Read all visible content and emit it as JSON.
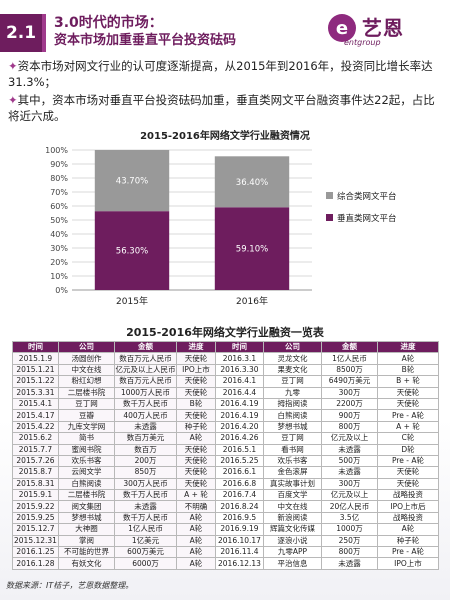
{
  "header": {
    "section": "2.1",
    "title_line1": "3.0时代的市场：",
    "title_line2": "资本市场加重垂直平台投资砝码",
    "logo_mark": "e",
    "logo_name": "艺恩",
    "logo_sub": "entgroup"
  },
  "bullets": [
    "资本市场对网文行业的认可度逐渐提高，从2015年到2016年，投资同比增长率达31.3%；",
    "其中，资本市场对垂直平台投资砝码加重，垂直类网文平台融资事件达22起，占比将近六成。"
  ],
  "bullet_marker": "✦",
  "chart_data": {
    "type": "bar",
    "stacked": true,
    "title": "2015-2016年网络文学行业融资情况",
    "categories": [
      "2015年",
      "2016年"
    ],
    "series": [
      {
        "name": "垂直类网文平台",
        "values": [
          56.3,
          59.1
        ],
        "labels": [
          "56.30%",
          "59.10%"
        ],
        "color": "#6e1d5e"
      },
      {
        "name": "综合类网文平台",
        "values": [
          43.7,
          36.4
        ],
        "labels": [
          "43.70%",
          "36.40%"
        ],
        "color": "#999999"
      }
    ],
    "ylim": [
      0,
      100
    ],
    "yticks": [
      "0%",
      "10%",
      "20%",
      "30%",
      "40%",
      "50%",
      "60%",
      "70%",
      "80%",
      "90%",
      "100%"
    ],
    "legend": "right",
    "grid": true
  },
  "table": {
    "title": "2015-2016年网络文学行业融资一览表",
    "headers": [
      "时间",
      "公司",
      "金额",
      "进度",
      "时间",
      "公司",
      "金额",
      "进度"
    ],
    "rows": [
      [
        "2015.1.9",
        "汤圆创作",
        "数百万元人民币",
        "天使轮",
        "2016.3.1",
        "灵龙文化",
        "1亿人民币",
        "A轮"
      ],
      [
        "2015.1.21",
        "中文在线",
        "亿元及以上人民币",
        "IPO上市",
        "2016.3.30",
        "果麦文化",
        "8500万",
        "B轮"
      ],
      [
        "2015.1.22",
        "粉红幻想",
        "数百万元人民币",
        "天使轮",
        "2016.4.1",
        "豆丁网",
        "6490万美元",
        "B + 轮"
      ],
      [
        "2015.3.31",
        "二层楼书院",
        "1000万人民币",
        "天使轮",
        "2016.4.4",
        "九零",
        "300万",
        "天使轮"
      ],
      [
        "2015.4.1",
        "豆丁网",
        "数千万人民币",
        "B轮",
        "2016.4.19",
        "拇指阅读",
        "2200万",
        "天使轮"
      ],
      [
        "2015.4.17",
        "豆瓣",
        "400万人民币",
        "天使轮",
        "2016.4.19",
        "白熊阅读",
        "900万",
        "Pre - A轮"
      ],
      [
        "2015.4.22",
        "九库文学网",
        "未透露",
        "种子轮",
        "2016.4.20",
        "梦想书城",
        "800万",
        "A + 轮"
      ],
      [
        "2015.6.2",
        "简书",
        "数百万美元",
        "A轮",
        "2016.4.26",
        "豆丁网",
        "亿元及以上",
        "C轮"
      ],
      [
        "2015.7.7",
        "蜜阅书院",
        "数百万",
        "天使轮",
        "2016.5.1",
        "看书网",
        "未透露",
        "D轮"
      ],
      [
        "2015.7.26",
        "欢乐书客",
        "200万",
        "天使轮",
        "2016.5.25",
        "欢乐书客",
        "500万",
        "Pre - A轮"
      ],
      [
        "2015.8.7",
        "云阅文学",
        "850万",
        "天使轮",
        "2016.6.1",
        "金色滚屏",
        "未透露",
        "天使轮"
      ],
      [
        "2015.8.31",
        "白熊阅读",
        "300万人民币",
        "天使轮",
        "2016.6.8",
        "真实故事计划",
        "300万",
        "天使轮"
      ],
      [
        "2015.9.1",
        "二层楼书院",
        "数千万人民币",
        "A + 轮",
        "2016.7.4",
        "百度文学",
        "亿元及以上",
        "战略投资"
      ],
      [
        "2015.9.22",
        "阅文集团",
        "未透露",
        "不明确",
        "2016.8.24",
        "中文在线",
        "20亿人民币",
        "IPO上市后"
      ],
      [
        "2015.9.25",
        "梦想书城",
        "数千万人民币",
        "A轮",
        "2016.9.5",
        "新浪阅读",
        "3.5亿",
        "战略投资"
      ],
      [
        "2015.12.7",
        "大神圈",
        "1亿人民币",
        "A轮",
        "2016.9.19",
        "辉篇文化传媒",
        "1000万",
        "A轮"
      ],
      [
        "2015.12.31",
        "掌阅",
        "1亿美元",
        "A轮",
        "2016.10.17",
        "逐浪小说",
        "250万",
        "种子轮"
      ],
      [
        "2016.1.25",
        "不可能的世界",
        "600万美元",
        "A轮",
        "2016.11.4",
        "九零APP",
        "800万",
        "Pre - A轮"
      ],
      [
        "2016.1.28",
        "有妖文化",
        "6000万",
        "A轮",
        "2016.12.13",
        "平治信息",
        "未透露",
        "IPO上市"
      ]
    ]
  },
  "footer": "数据来源：IT桔子，艺恩数据整理。"
}
